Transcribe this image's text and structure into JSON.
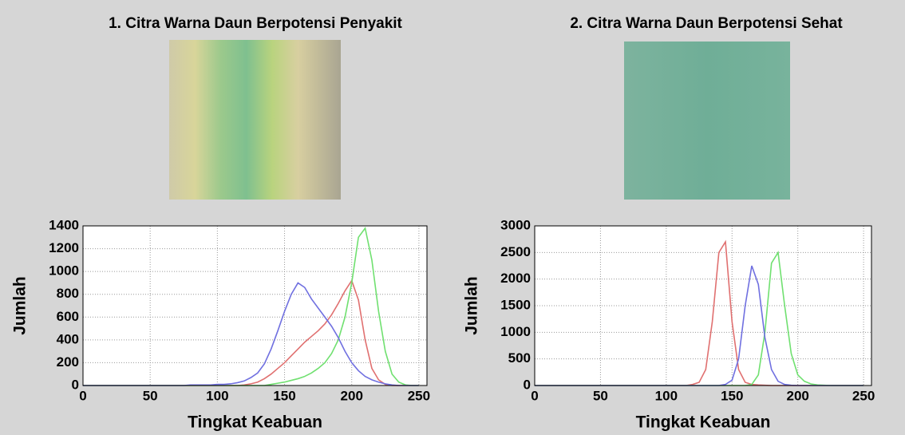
{
  "chart_data": [
    {
      "type": "line",
      "title": "1. Citra Warna Daun Berpotensi Penyakit",
      "xlabel": "Tingkat Keabuan",
      "ylabel": "Jumlah",
      "xlim": [
        0,
        256
      ],
      "ylim": [
        0,
        1400
      ],
      "xticks": [
        0,
        50,
        100,
        150,
        200,
        250
      ],
      "yticks": [
        0,
        200,
        400,
        600,
        800,
        1000,
        1200,
        1400
      ],
      "grid": true,
      "x": [
        0,
        5,
        10,
        15,
        20,
        25,
        30,
        35,
        40,
        45,
        50,
        55,
        60,
        65,
        70,
        75,
        80,
        85,
        90,
        95,
        100,
        105,
        110,
        115,
        120,
        125,
        130,
        135,
        140,
        145,
        150,
        155,
        160,
        165,
        170,
        175,
        180,
        185,
        190,
        195,
        200,
        205,
        210,
        215,
        220,
        225,
        230,
        235,
        240,
        245,
        250
      ],
      "series": [
        {
          "color": "#e07070",
          "values": [
            0,
            0,
            0,
            0,
            0,
            0,
            0,
            0,
            0,
            0,
            0,
            0,
            0,
            0,
            0,
            0,
            0,
            0,
            0,
            0,
            0,
            0,
            0,
            0,
            5,
            15,
            30,
            60,
            100,
            150,
            200,
            260,
            320,
            380,
            430,
            480,
            540,
            620,
            720,
            830,
            920,
            750,
            400,
            150,
            50,
            10,
            0,
            0,
            0,
            0,
            0
          ]
        },
        {
          "color": "#70e070",
          "values": [
            0,
            0,
            0,
            0,
            0,
            0,
            0,
            0,
            0,
            0,
            0,
            0,
            0,
            0,
            0,
            0,
            0,
            0,
            0,
            0,
            0,
            0,
            0,
            0,
            0,
            0,
            0,
            0,
            10,
            20,
            30,
            45,
            60,
            80,
            110,
            150,
            200,
            280,
            400,
            600,
            900,
            1300,
            1380,
            1100,
            650,
            300,
            100,
            30,
            5,
            0,
            0
          ]
        },
        {
          "color": "#7070e0",
          "values": [
            0,
            0,
            0,
            0,
            0,
            0,
            0,
            0,
            0,
            0,
            0,
            0,
            0,
            0,
            0,
            0,
            5,
            5,
            5,
            5,
            10,
            10,
            15,
            25,
            40,
            70,
            110,
            190,
            320,
            480,
            650,
            800,
            900,
            860,
            760,
            680,
            600,
            520,
            420,
            300,
            200,
            130,
            80,
            50,
            30,
            15,
            5,
            0,
            0,
            0,
            0
          ]
        }
      ]
    },
    {
      "type": "line",
      "title": "2. Citra Warna Daun Berpotensi Sehat",
      "xlabel": "Tingkat Keabuan",
      "ylabel": "Jumlah",
      "xlim": [
        0,
        256
      ],
      "ylim": [
        0,
        3000
      ],
      "xticks": [
        0,
        50,
        100,
        150,
        200,
        250
      ],
      "yticks": [
        0,
        500,
        1000,
        1500,
        2000,
        2500,
        3000
      ],
      "grid": true,
      "x": [
        0,
        5,
        10,
        15,
        20,
        25,
        30,
        35,
        40,
        45,
        50,
        55,
        60,
        65,
        70,
        75,
        80,
        85,
        90,
        95,
        100,
        105,
        110,
        115,
        120,
        125,
        130,
        135,
        140,
        145,
        150,
        155,
        160,
        165,
        170,
        175,
        180,
        185,
        190,
        195,
        200,
        205,
        210,
        215,
        220,
        225,
        230,
        235,
        240,
        245,
        250
      ],
      "series": [
        {
          "color": "#e07070",
          "values": [
            0,
            0,
            0,
            0,
            0,
            0,
            0,
            0,
            0,
            0,
            0,
            0,
            0,
            0,
            0,
            0,
            0,
            0,
            0,
            0,
            0,
            0,
            0,
            0,
            20,
            60,
            300,
            1200,
            2500,
            2700,
            1200,
            300,
            60,
            20,
            10,
            5,
            0,
            0,
            0,
            0,
            0,
            0,
            0,
            0,
            0,
            0,
            0,
            0,
            0,
            0,
            0
          ]
        },
        {
          "color": "#70e070",
          "values": [
            0,
            0,
            0,
            0,
            0,
            0,
            0,
            0,
            0,
            0,
            0,
            0,
            0,
            0,
            0,
            0,
            0,
            0,
            0,
            0,
            0,
            0,
            0,
            0,
            0,
            0,
            0,
            0,
            0,
            0,
            0,
            0,
            0,
            20,
            200,
            1000,
            2300,
            2500,
            1500,
            600,
            200,
            80,
            30,
            10,
            5,
            0,
            0,
            0,
            0,
            0,
            0
          ]
        },
        {
          "color": "#7070e0",
          "values": [
            0,
            0,
            0,
            0,
            0,
            0,
            0,
            0,
            0,
            0,
            0,
            0,
            0,
            0,
            0,
            0,
            0,
            0,
            0,
            0,
            0,
            0,
            0,
            0,
            0,
            0,
            0,
            0,
            0,
            20,
            100,
            500,
            1500,
            2250,
            1900,
            900,
            300,
            80,
            20,
            5,
            0,
            0,
            0,
            0,
            0,
            0,
            0,
            0,
            0,
            0,
            0
          ]
        }
      ]
    }
  ]
}
